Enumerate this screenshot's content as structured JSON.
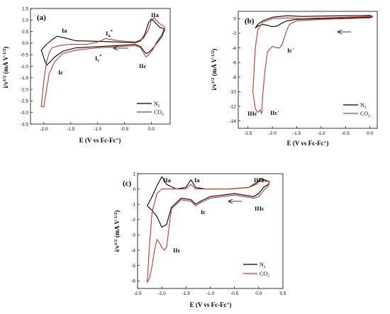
{
  "chart_data": [
    {
      "type": "line",
      "panel_label": "(a)",
      "xlabel": "E (V vs Fc-Fc+)",
      "ylabel": "i/v1/2 (mA V-1/2)",
      "xlim": [
        -2.25,
        0.35
      ],
      "ylim": [
        -3.5,
        1.5
      ],
      "xticks": [
        -2.0,
        -1.5,
        -1.0,
        -0.5,
        0.0
      ],
      "yticks": [
        -3.5,
        -3.0,
        -2.5,
        -2.0,
        -1.5,
        -1.0,
        -0.5,
        0.0,
        0.5,
        1.0,
        1.5
      ],
      "xtick_labels": [
        "-2.0",
        "-1.5",
        "-1.0",
        "-0.5",
        "0.0"
      ],
      "ytick_labels": [
        "-3.5",
        "-3.0",
        "-2.5",
        "-2.0",
        "-1.5",
        "-1.0",
        "-0.5",
        "0.0",
        "0.5",
        "1.0",
        "1.5"
      ],
      "legend": "bottom-right",
      "series": [
        {
          "name": "N2",
          "color": "#000000",
          "x": [
            -0.3,
            -0.6,
            -1.0,
            -1.4,
            -1.65,
            -1.8,
            -1.9,
            -1.95,
            -2.0,
            -2.05,
            -1.95,
            -1.85,
            -1.75,
            -1.6,
            -1.4,
            -1.0,
            -0.6,
            -0.3,
            -0.2,
            -0.12,
            -0.05,
            0.0,
            0.05,
            0.15,
            0.25,
            0.2,
            0.1,
            0.02,
            -0.05,
            -0.1,
            -0.15,
            -0.2,
            -0.3
          ],
          "y": [
            -0.05,
            -0.1,
            -0.15,
            -0.2,
            -0.35,
            -0.6,
            -0.85,
            -0.95,
            -0.65,
            -0.3,
            -0.05,
            0.15,
            0.3,
            0.22,
            0.1,
            0.08,
            0.05,
            0.02,
            0.1,
            0.4,
            0.9,
            1.05,
            0.95,
            0.7,
            0.6,
            0.3,
            0.0,
            -0.25,
            -0.4,
            -0.45,
            -0.3,
            -0.15,
            -0.05
          ]
        },
        {
          "name": "CO2",
          "color": "#c0392b",
          "x": [
            -0.3,
            -0.6,
            -1.0,
            -1.4,
            -1.65,
            -1.8,
            -1.9,
            -1.95,
            -2.0,
            -2.05,
            -2.0,
            -1.95,
            -1.9,
            -1.85,
            -1.7,
            -1.5,
            -1.2,
            -1.0,
            -0.85,
            -0.6,
            -0.3,
            -0.15,
            -0.05,
            0.0,
            0.05,
            0.15,
            0.25,
            0.2,
            0.1,
            0.02,
            -0.05,
            -0.1,
            -0.15,
            -0.2,
            -0.3
          ],
          "y": [
            -0.1,
            -0.15,
            -0.2,
            -0.3,
            -0.45,
            -0.8,
            -1.3,
            -2.0,
            -2.75,
            -2.75,
            -1.6,
            -0.8,
            -0.4,
            -0.2,
            -0.1,
            -0.05,
            -0.05,
            0.05,
            0.2,
            0.1,
            0.05,
            0.2,
            0.6,
            1.0,
            1.1,
            0.85,
            0.7,
            0.4,
            0.05,
            -0.3,
            -0.5,
            -0.6,
            -0.4,
            -0.2,
            -0.1
          ]
        }
      ],
      "annotations": [
        "Ia",
        "Ia*",
        "Ic",
        "Ic*",
        "IIa",
        "IIc"
      ]
    },
    {
      "type": "line",
      "panel_label": "(b)",
      "xlabel": "E (V vs Fc-Fc+)",
      "ylabel": "i/v1/2 (mA V-1/2)",
      "xlim": [
        -2.7,
        0.15
      ],
      "ylim": [
        -15,
        1
      ],
      "xticks": [
        -2.5,
        -2.0,
        -1.5,
        -1.0,
        -0.5,
        0.0
      ],
      "yticks": [
        -14,
        -12,
        -10,
        -8,
        -6,
        -4,
        -2,
        0
      ],
      "xtick_labels": [
        "-2.5",
        "-2.0",
        "-1.5",
        "-1.0",
        "-0.5",
        "0.0"
      ],
      "ytick_labels": [
        "-14",
        "-12",
        "-10",
        "-8",
        "-6",
        "-4",
        "-2",
        "0"
      ],
      "legend": "bottom-right",
      "series": [
        {
          "name": "N2",
          "color": "#000000",
          "x": [
            0.0,
            -0.5,
            -1.0,
            -1.5,
            -1.7,
            -1.8,
            -1.9,
            -2.0,
            -2.1,
            -2.2,
            -2.3,
            -2.35,
            -2.3,
            -2.2,
            -2.0,
            -1.7,
            -1.4,
            -1.0,
            -0.5,
            0.0,
            0.05
          ],
          "y": [
            0.2,
            0.1,
            0.0,
            -0.1,
            -0.3,
            -0.6,
            -1.0,
            -1.1,
            -0.9,
            -0.8,
            -1.0,
            -1.3,
            -0.8,
            -0.3,
            0.2,
            0.4,
            0.3,
            0.35,
            0.4,
            0.45,
            0.3
          ]
        },
        {
          "name": "CO2",
          "color": "#c0392b",
          "x": [
            0.0,
            -0.5,
            -1.0,
            -1.5,
            -1.65,
            -1.7,
            -1.75,
            -1.8,
            -1.85,
            -1.9,
            -2.0,
            -2.1,
            -2.15,
            -2.2,
            -2.22,
            -2.25,
            -2.3,
            -2.35,
            -2.4,
            -2.35,
            -2.3,
            -2.2,
            -2.0,
            -1.7,
            -1.4,
            -1.0,
            -0.5,
            0.0,
            0.05
          ],
          "y": [
            0.1,
            0.0,
            -0.1,
            -0.3,
            -0.8,
            -1.5,
            -2.5,
            -3.5,
            -4.0,
            -4.0,
            -3.8,
            -4.5,
            -7.0,
            -10.5,
            -13.0,
            -12.5,
            -12.8,
            -12.3,
            -10.0,
            -4.0,
            -1.5,
            -0.5,
            0.0,
            0.1,
            0.0,
            0.1,
            0.2,
            0.3,
            0.2
          ]
        }
      ],
      "annotations": [
        "Ic´",
        "IIc´",
        "IIIc"
      ]
    },
    {
      "type": "line",
      "panel_label": "(c)",
      "xlabel": "E (V vs Fc-Fc+)",
      "ylabel": "i/v1/2 (mA V-1/2)",
      "xlim": [
        -2.5,
        0.5
      ],
      "ylim": [
        -6.5,
        1
      ],
      "xticks": [
        -2.5,
        -2.0,
        -1.5,
        -1.0,
        -0.5,
        0.0,
        0.5
      ],
      "yticks": [
        -6,
        -5,
        -4,
        -3,
        -2,
        -1,
        0,
        1
      ],
      "xtick_labels": [
        "-2.5",
        "-2.0",
        "-1.5",
        "-1.0",
        "-0.5",
        "0.0",
        "0.5"
      ],
      "ytick_labels": [
        "-6",
        "-5",
        "-4",
        "-3",
        "-2",
        "-1",
        "0",
        "1"
      ],
      "legend": "bottom-right",
      "series": [
        {
          "name": "N2",
          "color": "#000000",
          "x": [
            0.2,
            0.1,
            0.0,
            -0.1,
            -0.5,
            -1.0,
            -1.2,
            -1.3,
            -1.4,
            -1.6,
            -1.8,
            -1.9,
            -2.0,
            -2.1,
            -2.2,
            -2.3,
            -2.2,
            -2.1,
            -2.0,
            -1.9,
            -1.7,
            -1.5,
            -1.4,
            -1.3,
            -1.1,
            -0.6,
            -0.2,
            -0.05,
            0.05,
            0.15,
            0.22,
            0.2
          ],
          "y": [
            0.3,
            0.1,
            -0.3,
            -0.5,
            -0.3,
            -0.5,
            -0.8,
            -1.0,
            -0.7,
            -0.6,
            -1.2,
            -2.3,
            -2.5,
            -1.8,
            -1.4,
            -1.1,
            -0.5,
            0.2,
            0.8,
            0.3,
            0.0,
            0.1,
            0.6,
            0.1,
            0.0,
            0.0,
            0.1,
            0.4,
            0.7,
            0.55,
            0.5,
            0.3
          ]
        },
        {
          "name": "CO2",
          "color": "#c0392b",
          "x": [
            0.2,
            0.1,
            0.0,
            -0.1,
            -0.5,
            -1.0,
            -1.2,
            -1.3,
            -1.4,
            -1.6,
            -1.8,
            -1.85,
            -1.9,
            -1.95,
            -2.0,
            -2.05,
            -2.1,
            -2.15,
            -2.2,
            -2.25,
            -2.3,
            -2.25,
            -2.2,
            -2.1,
            -2.0,
            -1.7,
            -1.5,
            -1.4,
            -1.3,
            -1.1,
            -0.6,
            -0.2,
            -0.05,
            0.05,
            0.15,
            0.22,
            0.2
          ],
          "y": [
            0.2,
            -0.1,
            -0.5,
            -0.6,
            -0.4,
            -0.6,
            -0.9,
            -1.1,
            -0.8,
            -0.7,
            -1.3,
            -2.5,
            -3.8,
            -4.0,
            -3.8,
            -3.5,
            -3.3,
            -4.0,
            -5.0,
            -5.8,
            -6.1,
            -3.5,
            -1.5,
            -0.3,
            0.0,
            0.0,
            0.0,
            0.3,
            0.0,
            0.0,
            0.0,
            0.1,
            0.3,
            0.6,
            0.5,
            0.5,
            0.2
          ]
        }
      ],
      "annotations": [
        "IIa",
        "Ia",
        "IIIa",
        "Ic",
        "IIIc",
        "IIc"
      ]
    }
  ]
}
